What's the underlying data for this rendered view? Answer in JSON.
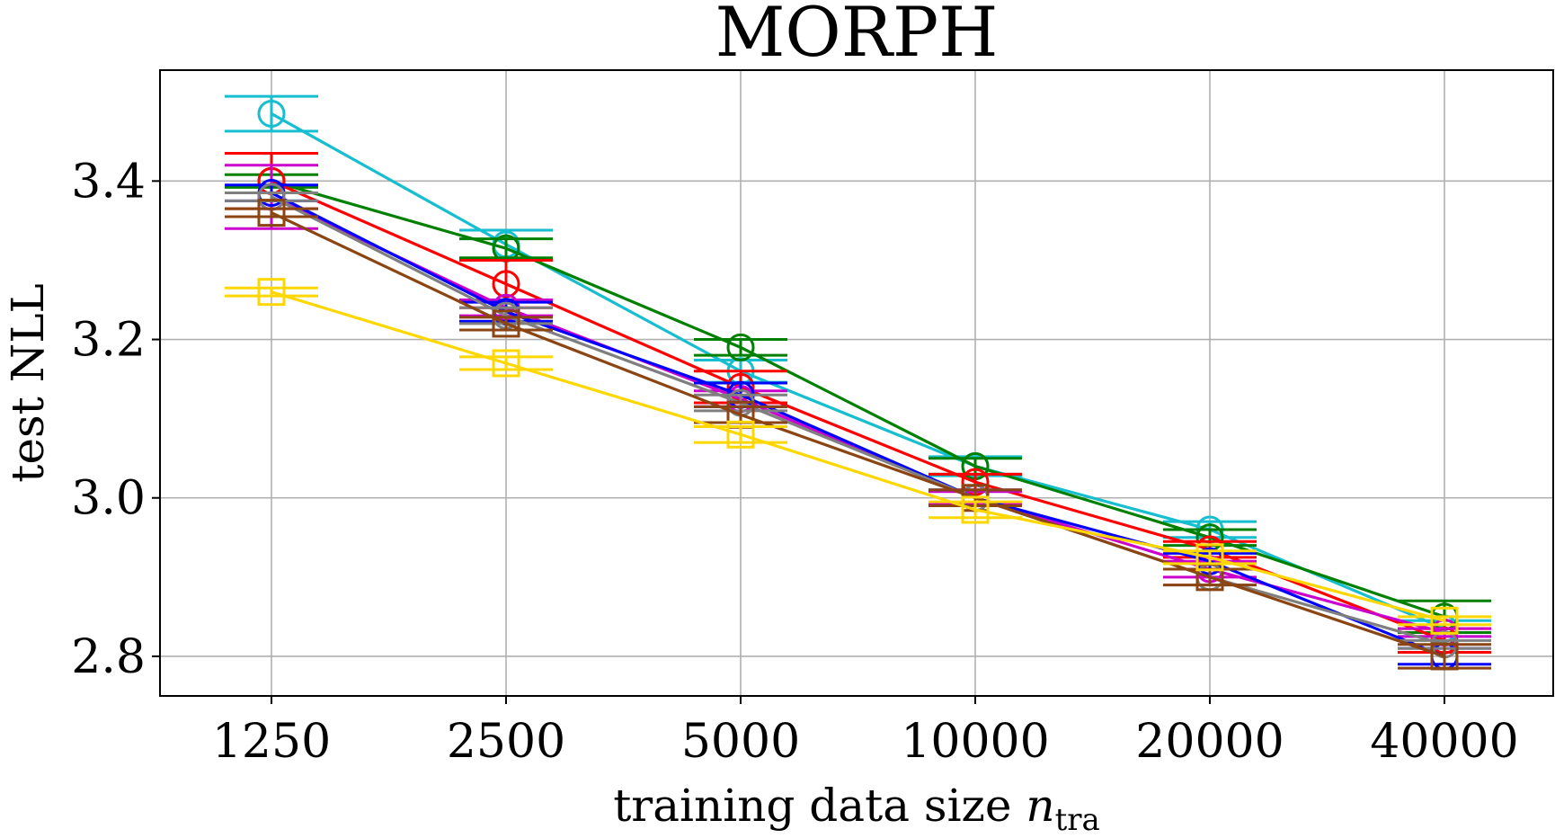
{
  "chart_data": {
    "type": "line",
    "title": "MORPH",
    "xlabel_prefix": "training data size ",
    "xlabel_var": "n",
    "xlabel_sub": "tra",
    "ylabel": "test NLL",
    "categories": [
      "1250",
      "2500",
      "5000",
      "10000",
      "20000",
      "40000"
    ],
    "ylim": [
      2.75,
      3.54
    ],
    "yticks": [
      2.8,
      3.0,
      3.2,
      3.4
    ],
    "ytick_labels": [
      "2.8",
      "3.0",
      "3.2",
      "3.4"
    ],
    "grid": true,
    "series": [
      {
        "name": "cyan",
        "color": "#17becf",
        "marker": "circle",
        "values": [
          3.485,
          3.32,
          3.16,
          3.04,
          2.96,
          2.835
        ],
        "errors": [
          0.022,
          0.018,
          0.014,
          0.012,
          0.01,
          0.01
        ]
      },
      {
        "name": "green",
        "color": "#008000",
        "marker": "circle",
        "values": [
          3.4,
          3.315,
          3.19,
          3.04,
          2.95,
          2.85
        ],
        "errors": [
          0.008,
          0.012,
          0.01,
          0.01,
          0.01,
          0.02
        ]
      },
      {
        "name": "red",
        "color": "#ff0000",
        "marker": "circle",
        "values": [
          3.4,
          3.27,
          3.14,
          3.02,
          2.935,
          2.82
        ],
        "errors": [
          0.035,
          0.03,
          0.02,
          0.01,
          0.01,
          0.015
        ]
      },
      {
        "name": "magenta",
        "color": "#cc00cc",
        "marker": "circle",
        "values": [
          3.38,
          3.24,
          3.125,
          3.0,
          2.91,
          2.83
        ],
        "errors": [
          0.04,
          0.01,
          0.01,
          0.008,
          0.01,
          0.005
        ]
      },
      {
        "name": "blue",
        "color": "#0000ff",
        "marker": "circle",
        "values": [
          3.385,
          3.235,
          3.13,
          3.0,
          2.92,
          2.8
        ],
        "errors": [
          0.01,
          0.012,
          0.015,
          0.01,
          0.01,
          0.01
        ]
      },
      {
        "name": "gray",
        "color": "#7f7f7f",
        "marker": "circle",
        "values": [
          3.38,
          3.23,
          3.12,
          3.0,
          2.9,
          2.815
        ],
        "errors": [
          0.005,
          0.01,
          0.01,
          0.01,
          0.01,
          0.005
        ]
      },
      {
        "name": "brown",
        "color": "#8b4513",
        "marker": "square",
        "values": [
          3.36,
          3.22,
          3.105,
          3.0,
          2.9,
          2.8
        ],
        "errors": [
          0.005,
          0.008,
          0.01,
          0.01,
          0.01,
          0.015
        ]
      },
      {
        "name": "gold",
        "color": "#ffd700",
        "marker": "square",
        "values": [
          3.26,
          3.17,
          3.08,
          2.985,
          2.925,
          2.845
        ],
        "errors": [
          0.005,
          0.008,
          0.01,
          0.01,
          0.008,
          0.005
        ]
      }
    ]
  }
}
